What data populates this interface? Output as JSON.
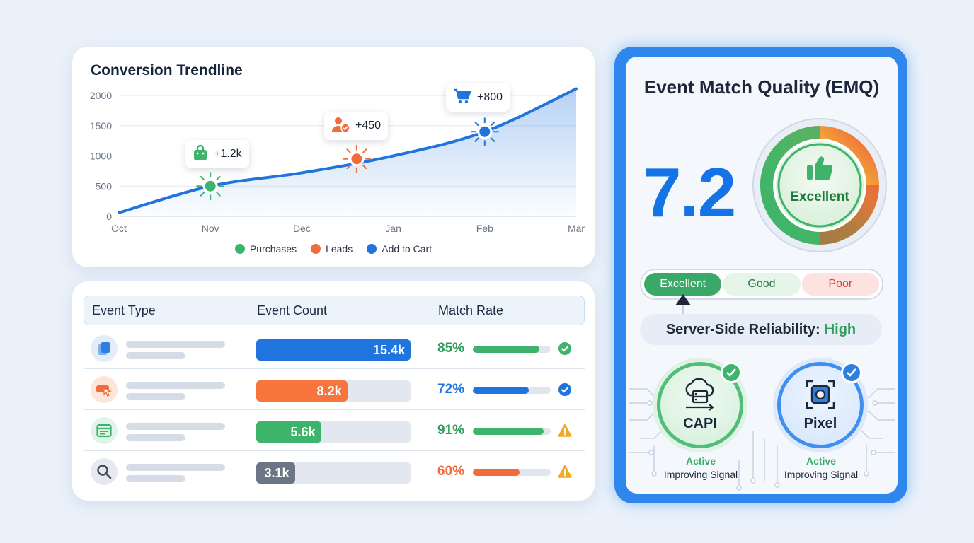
{
  "trend": {
    "title": "Conversion Trendline",
    "callouts": [
      {
        "label": "+1.2k",
        "icon": "shopping-bag-icon",
        "color": "#3db36b"
      },
      {
        "label": "+450",
        "icon": "user-check-icon",
        "color": "#f26b3a"
      },
      {
        "label": "+800",
        "icon": "cart-icon",
        "color": "#1f74dd"
      }
    ],
    "legend": [
      {
        "label": "Purchases",
        "color": "#3db36b"
      },
      {
        "label": "Leads",
        "color": "#f26b3a"
      },
      {
        "label": "Add to Cart",
        "color": "#1f74dd"
      }
    ]
  },
  "chart_data": {
    "type": "area",
    "title": "Conversion Trendline",
    "x": [
      "Oct",
      "Nov",
      "Dec",
      "Jan",
      "Feb",
      "Mar"
    ],
    "y_ticks": [
      "0",
      "500",
      "1000",
      "1500",
      "2000"
    ],
    "ylim": [
      0,
      2000
    ],
    "series": [
      {
        "values": [
          60,
          500,
          720,
          1000,
          1400,
          2110
        ]
      }
    ],
    "markers": [
      {
        "name": "Purchases",
        "x_index": 1,
        "y": 500,
        "label": "+1.2k",
        "color": "#3db36b"
      },
      {
        "name": "Leads",
        "x_index": 2.6,
        "y": 950,
        "label": "+450",
        "color": "#f26b3a"
      },
      {
        "name": "Add to Cart",
        "x_index": 4,
        "y": 1400,
        "label": "+800",
        "color": "#1f74dd"
      }
    ],
    "grid": true,
    "legend_position": "bottom-center"
  },
  "table": {
    "headers": {
      "type": "Event Type",
      "count": "Event Count",
      "rate": "Match Rate"
    },
    "rows": [
      {
        "icon": "document-stack-icon",
        "icon_color": "#2f7fe0",
        "icon_bg": "#e3edfa",
        "count": "15.4k",
        "count_fraction": 1.0,
        "count_color": "#1f74dd",
        "rate": "85%",
        "rate_fraction": 0.85,
        "rate_color": "#3db36b",
        "rate_text_color": "#2f9e5a",
        "status": "check-circle-icon",
        "status_color": "#3db36b"
      },
      {
        "icon": "cursor-click-icon",
        "icon_color": "#f26b3a",
        "icon_bg": "#fde5da",
        "count": "8.2k",
        "count_fraction": 0.59,
        "count_color": "#f7743c",
        "rate": "72%",
        "rate_fraction": 0.72,
        "rate_color": "#1f74dd",
        "rate_text_color": "#1f74dd",
        "status": "check-circle-icon",
        "status_color": "#1f74dd"
      },
      {
        "icon": "browser-window-icon",
        "icon_color": "#3db36b",
        "icon_bg": "#e2f4e8",
        "count": "5.6k",
        "count_fraction": 0.42,
        "count_color": "#3db36b",
        "rate": "91%",
        "rate_fraction": 0.91,
        "rate_color": "#3db36b",
        "rate_text_color": "#2f9e5a",
        "status": "warning-icon",
        "status_color": "#f5a623"
      },
      {
        "icon": "search-icon",
        "icon_color": "#3f4a5c",
        "icon_bg": "#e6eaf0",
        "count": "3.1k",
        "count_fraction": 0.25,
        "count_color": "#6b7585",
        "rate": "60%",
        "rate_fraction": 0.6,
        "rate_color": "#f26b3a",
        "rate_text_color": "#f26b3a",
        "status": "warning-icon",
        "status_color": "#f5a623"
      }
    ]
  },
  "emq": {
    "title": "Event Match Quality (EMQ)",
    "score": "7.2",
    "gauge_label": "Excellent",
    "gauge_icon": "thumbs-up-icon",
    "rating_scale": [
      {
        "label": "Excellent",
        "bg": "#3aa866",
        "color": "#ffffff"
      },
      {
        "label": "Good",
        "bg": "#e5f5ea",
        "color": "#2b7a45"
      },
      {
        "label": "Poor",
        "bg": "#fde3e0",
        "color": "#d9483b"
      }
    ],
    "reliability_label": "Server-Side Reliability:",
    "reliability_value": "High",
    "reliability_value_color": "#2f9e5a",
    "sources": [
      {
        "name": "CAPI",
        "icon": "cloud-server-icon",
        "status": "Active",
        "subtitle": "Improving Signal",
        "color": "#3db36b"
      },
      {
        "name": "Pixel",
        "icon": "pixel-camera-icon",
        "status": "Active",
        "subtitle": "Improving Signal",
        "color": "#2f7fe0"
      }
    ]
  }
}
